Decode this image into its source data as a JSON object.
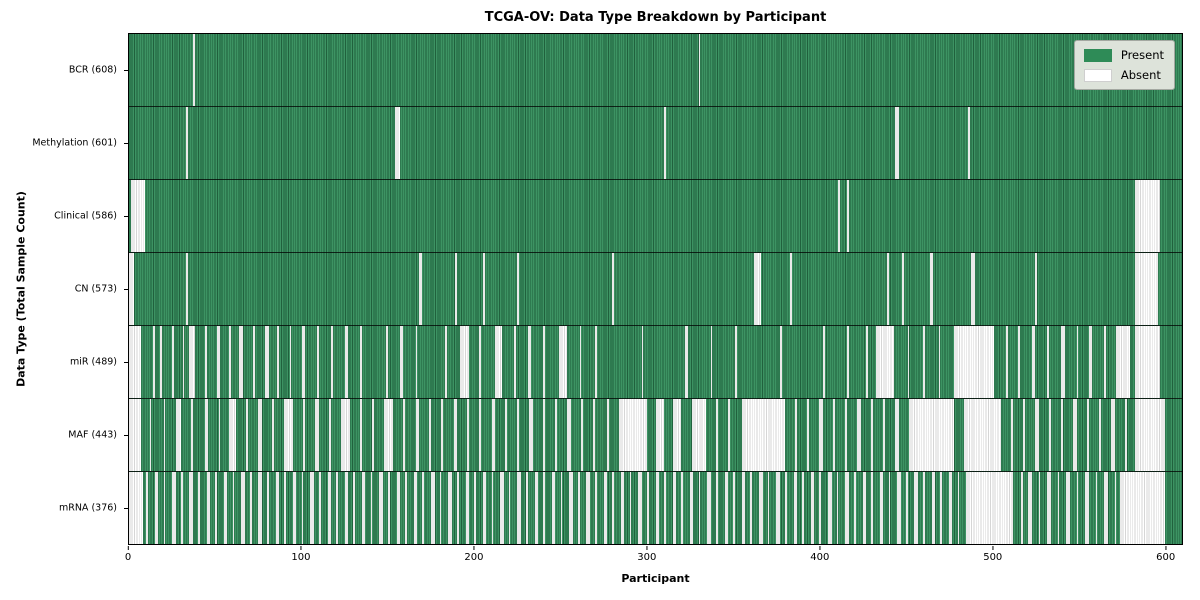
{
  "title": "TCGA-OV: Data Type Breakdown by Participant",
  "xlabel": "Participant",
  "ylabel": "Data Type (Total Sample Count)",
  "legend": [
    {
      "label": "Present",
      "color": "#2e8b57"
    },
    {
      "label": "Absent",
      "color": "#ffffff"
    }
  ],
  "colors": {
    "present": "#2e8b57",
    "absent": "#ffffff",
    "row_separator": "#000000",
    "legend_bg": "#dde3da"
  },
  "chart_data": {
    "type": "heatmap",
    "title": "TCGA-OV: Data Type Breakdown by Participant",
    "xlabel": "Participant",
    "ylabel": "Data Type (Total Sample Count)",
    "legend_position": "upper right",
    "x_max": 610,
    "x_ticks": [
      0,
      100,
      200,
      300,
      400,
      500,
      600
    ],
    "rows": [
      {
        "name": "BCR",
        "label": "BCR (608)",
        "present_count": 608,
        "absent_ranges": [
          [
            37,
            38
          ],
          [
            330,
            331
          ]
        ]
      },
      {
        "name": "Methylation",
        "label": "Methylation (601)",
        "present_count": 601,
        "absent_ranges": [
          [
            33,
            34
          ],
          [
            154,
            157
          ],
          [
            310,
            311
          ],
          [
            444,
            446
          ],
          [
            486,
            487
          ]
        ]
      },
      {
        "name": "Clinical",
        "label": "Clinical (586)",
        "present_count": 586,
        "absent_ranges": [
          [
            1,
            9
          ],
          [
            411,
            412
          ],
          [
            416,
            417
          ],
          [
            583,
            597
          ]
        ]
      },
      {
        "name": "CN",
        "label": "CN (573)",
        "present_count": 573,
        "absent_ranges": [
          [
            0,
            3
          ],
          [
            33,
            34
          ],
          [
            168,
            170
          ],
          [
            189,
            190
          ],
          [
            205,
            206
          ],
          [
            225,
            226
          ],
          [
            280,
            281
          ],
          [
            362,
            366
          ],
          [
            383,
            384
          ],
          [
            439,
            440
          ],
          [
            448,
            449
          ],
          [
            464,
            466
          ],
          [
            488,
            490
          ],
          [
            525,
            526
          ],
          [
            583,
            596
          ]
        ]
      },
      {
        "name": "miR",
        "label": "miR (489)",
        "present_count": 489,
        "absent_ranges": [
          [
            0,
            7
          ],
          [
            14,
            15
          ],
          [
            18,
            19
          ],
          [
            25,
            26
          ],
          [
            31,
            32
          ],
          [
            35,
            38
          ],
          [
            44,
            45
          ],
          [
            51,
            53
          ],
          [
            58,
            59
          ],
          [
            64,
            66
          ],
          [
            72,
            73
          ],
          [
            79,
            81
          ],
          [
            86,
            87
          ],
          [
            93,
            94
          ],
          [
            100,
            102
          ],
          [
            109,
            110
          ],
          [
            117,
            118
          ],
          [
            125,
            127
          ],
          [
            134,
            135
          ],
          [
            149,
            150
          ],
          [
            157,
            159
          ],
          [
            166,
            167
          ],
          [
            183,
            184
          ],
          [
            192,
            197
          ],
          [
            203,
            204
          ],
          [
            212,
            216
          ],
          [
            223,
            224
          ],
          [
            231,
            233
          ],
          [
            240,
            241
          ],
          [
            249,
            254
          ],
          [
            261,
            262
          ],
          [
            270,
            271
          ],
          [
            297,
            298
          ],
          [
            322,
            324
          ],
          [
            337,
            338
          ],
          [
            351,
            352
          ],
          [
            377,
            378
          ],
          [
            402,
            403
          ],
          [
            416,
            417
          ],
          [
            427,
            428
          ],
          [
            433,
            443
          ],
          [
            451,
            452
          ],
          [
            460,
            461
          ],
          [
            469,
            470
          ],
          [
            478,
            501
          ],
          [
            508,
            509
          ],
          [
            515,
            516
          ],
          [
            523,
            525
          ],
          [
            532,
            533
          ],
          [
            540,
            542
          ],
          [
            549,
            550
          ],
          [
            556,
            558
          ],
          [
            565,
            566
          ],
          [
            572,
            580
          ],
          [
            583,
            597
          ]
        ]
      },
      {
        "name": "MAF",
        "label": "MAF (443)",
        "present_count": 443,
        "absent_ranges": [
          [
            0,
            7
          ],
          [
            12,
            13
          ],
          [
            20,
            21
          ],
          [
            27,
            30
          ],
          [
            36,
            37
          ],
          [
            44,
            46
          ],
          [
            52,
            53
          ],
          [
            58,
            62
          ],
          [
            68,
            69
          ],
          [
            75,
            77
          ],
          [
            83,
            84
          ],
          [
            90,
            95
          ],
          [
            101,
            102
          ],
          [
            108,
            110
          ],
          [
            116,
            117
          ],
          [
            123,
            128
          ],
          [
            134,
            135
          ],
          [
            141,
            142
          ],
          [
            148,
            153
          ],
          [
            159,
            160
          ],
          [
            166,
            168
          ],
          [
            174,
            175
          ],
          [
            181,
            182
          ],
          [
            188,
            190
          ],
          [
            196,
            197
          ],
          [
            203,
            204
          ],
          [
            210,
            212
          ],
          [
            218,
            219
          ],
          [
            225,
            226
          ],
          [
            232,
            234
          ],
          [
            240,
            241
          ],
          [
            247,
            248
          ],
          [
            254,
            256
          ],
          [
            262,
            263
          ],
          [
            269,
            270
          ],
          [
            277,
            278
          ],
          [
            284,
            300
          ],
          [
            305,
            310
          ],
          [
            315,
            320
          ],
          [
            326,
            334
          ],
          [
            340,
            341
          ],
          [
            347,
            348
          ],
          [
            355,
            380
          ],
          [
            386,
            387
          ],
          [
            393,
            394
          ],
          [
            400,
            402
          ],
          [
            408,
            409
          ],
          [
            415,
            416
          ],
          [
            422,
            424
          ],
          [
            430,
            431
          ],
          [
            437,
            438
          ],
          [
            444,
            446
          ],
          [
            452,
            478
          ],
          [
            484,
            505
          ],
          [
            511,
            512
          ],
          [
            518,
            519
          ],
          [
            525,
            527
          ],
          [
            533,
            534
          ],
          [
            540,
            541
          ],
          [
            547,
            549
          ],
          [
            555,
            556
          ],
          [
            562,
            563
          ],
          [
            569,
            571
          ],
          [
            577,
            578
          ],
          [
            583,
            600
          ]
        ]
      },
      {
        "name": "mRNA",
        "label": "mRNA (376)",
        "present_count": 376,
        "absent_ranges": [
          [
            0,
            8
          ],
          [
            10,
            11
          ],
          [
            15,
            17
          ],
          [
            20,
            21
          ],
          [
            25,
            27
          ],
          [
            30,
            31
          ],
          [
            35,
            37
          ],
          [
            40,
            41
          ],
          [
            45,
            47
          ],
          [
            50,
            51
          ],
          [
            55,
            57
          ],
          [
            60,
            61
          ],
          [
            65,
            67
          ],
          [
            70,
            71
          ],
          [
            75,
            77
          ],
          [
            80,
            81
          ],
          [
            85,
            87
          ],
          [
            90,
            91
          ],
          [
            95,
            97
          ],
          [
            100,
            101
          ],
          [
            105,
            107
          ],
          [
            110,
            111
          ],
          [
            115,
            117
          ],
          [
            120,
            121
          ],
          [
            125,
            127
          ],
          [
            130,
            131
          ],
          [
            135,
            137
          ],
          [
            140,
            141
          ],
          [
            145,
            147
          ],
          [
            150,
            151
          ],
          [
            155,
            157
          ],
          [
            160,
            161
          ],
          [
            165,
            167
          ],
          [
            170,
            171
          ],
          [
            175,
            177
          ],
          [
            180,
            181
          ],
          [
            185,
            187
          ],
          [
            190,
            191
          ],
          [
            195,
            197
          ],
          [
            200,
            201
          ],
          [
            205,
            207
          ],
          [
            210,
            211
          ],
          [
            215,
            217
          ],
          [
            220,
            221
          ],
          [
            225,
            227
          ],
          [
            230,
            231
          ],
          [
            235,
            237
          ],
          [
            240,
            241
          ],
          [
            245,
            247
          ],
          [
            250,
            251
          ],
          [
            255,
            257
          ],
          [
            260,
            261
          ],
          [
            265,
            267
          ],
          [
            270,
            271
          ],
          [
            275,
            277
          ],
          [
            280,
            281
          ],
          [
            285,
            287
          ],
          [
            290,
            291
          ],
          [
            295,
            297
          ],
          [
            300,
            301
          ],
          [
            305,
            307
          ],
          [
            310,
            311
          ],
          [
            315,
            317
          ],
          [
            320,
            321
          ],
          [
            325,
            327
          ],
          [
            330,
            331
          ],
          [
            335,
            337
          ],
          [
            340,
            341
          ],
          [
            345,
            347
          ],
          [
            350,
            351
          ],
          [
            355,
            357
          ],
          [
            360,
            361
          ],
          [
            365,
            367
          ],
          [
            370,
            371
          ],
          [
            375,
            377
          ],
          [
            380,
            381
          ],
          [
            385,
            387
          ],
          [
            390,
            391
          ],
          [
            395,
            397
          ],
          [
            400,
            401
          ],
          [
            405,
            407
          ],
          [
            410,
            411
          ],
          [
            415,
            417
          ],
          [
            420,
            421
          ],
          [
            425,
            427
          ],
          [
            430,
            431
          ],
          [
            435,
            437
          ],
          [
            440,
            441
          ],
          [
            445,
            447
          ],
          [
            450,
            451
          ],
          [
            455,
            457
          ],
          [
            460,
            461
          ],
          [
            465,
            467
          ],
          [
            470,
            471
          ],
          [
            475,
            477
          ],
          [
            480,
            481
          ],
          [
            485,
            512
          ],
          [
            517,
            518
          ],
          [
            521,
            523
          ],
          [
            527,
            528
          ],
          [
            532,
            534
          ],
          [
            538,
            539
          ],
          [
            543,
            545
          ],
          [
            549,
            550
          ],
          [
            554,
            556
          ],
          [
            560,
            561
          ],
          [
            565,
            567
          ],
          [
            571,
            572
          ],
          [
            574,
            600
          ]
        ]
      }
    ]
  }
}
